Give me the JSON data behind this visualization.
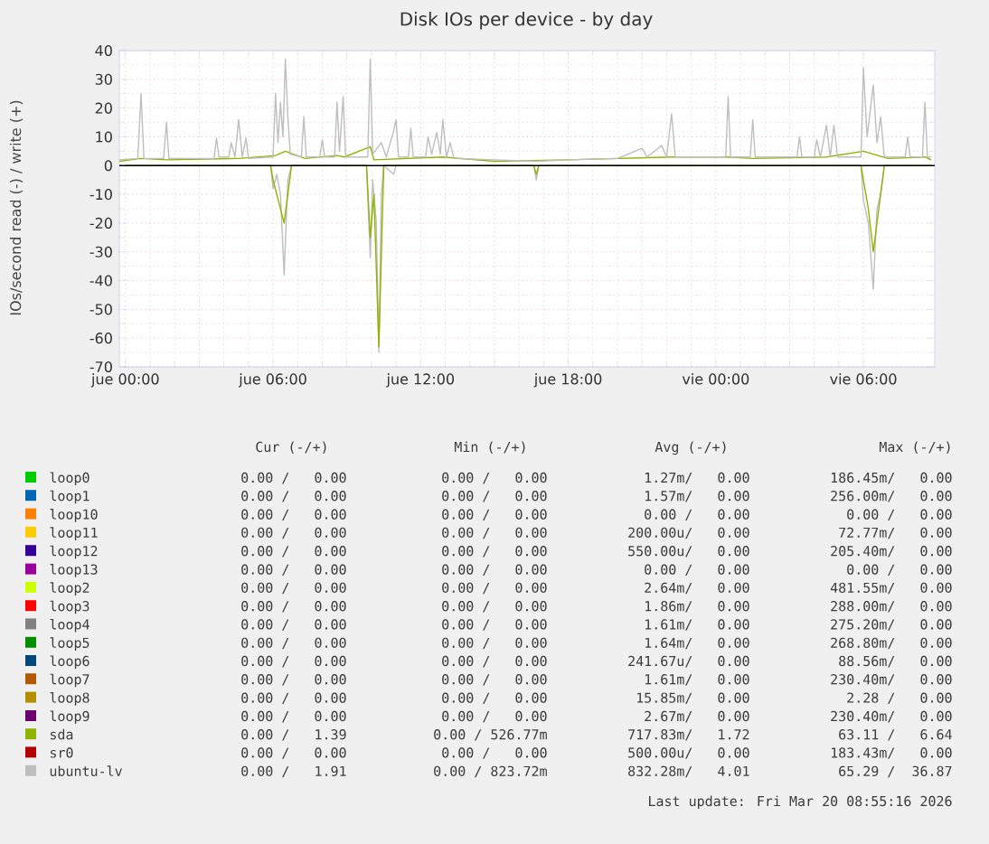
{
  "chart_data": {
    "type": "line",
    "title": "Disk IOs per device - by day",
    "ylabel": "IOs/second read (-) / write (+)",
    "xlim": [
      "2026-03-18T23:45",
      "2026-03-20T08:54"
    ],
    "ylim": [
      -70,
      40
    ],
    "xticks": [
      {
        "value": "2026-03-19T00:00",
        "label": "jue 00:00"
      },
      {
        "value": "2026-03-19T03:00",
        "label": null
      },
      {
        "value": "2026-03-19T06:00",
        "label": "jue 06:00"
      },
      {
        "value": "2026-03-19T09:00",
        "label": null
      },
      {
        "value": "2026-03-19T12:00",
        "label": "jue 12:00"
      },
      {
        "value": "2026-03-19T15:00",
        "label": null
      },
      {
        "value": "2026-03-19T18:00",
        "label": "jue 18:00"
      },
      {
        "value": "2026-03-19T21:00",
        "label": null
      },
      {
        "value": "2026-03-20T00:00",
        "label": "vie 00:00"
      },
      {
        "value": "2026-03-20T03:00",
        "label": null
      },
      {
        "value": "2026-03-20T06:00",
        "label": "vie 06:00"
      }
    ],
    "yticks": [
      -70,
      -60,
      -50,
      -40,
      -30,
      -20,
      -10,
      0,
      10,
      20,
      30,
      40
    ],
    "grid": true,
    "legend": "bottom",
    "ref_lines": [
      {
        "axis": "y",
        "value": 0,
        "color": "#000000"
      }
    ],
    "series": [
      {
        "name": "loop0",
        "color": "#00cc00"
      },
      {
        "name": "loop1",
        "color": "#0066b3"
      },
      {
        "name": "loop10",
        "color": "#ff8000"
      },
      {
        "name": "loop11",
        "color": "#ffcc00"
      },
      {
        "name": "loop12",
        "color": "#330099"
      },
      {
        "name": "loop13",
        "color": "#990099"
      },
      {
        "name": "loop2",
        "color": "#ccff00"
      },
      {
        "name": "loop3",
        "color": "#ff0000"
      },
      {
        "name": "loop4",
        "color": "#808080"
      },
      {
        "name": "loop5",
        "color": "#008f00"
      },
      {
        "name": "loop6",
        "color": "#00487d"
      },
      {
        "name": "loop7",
        "color": "#b35a00"
      },
      {
        "name": "loop8",
        "color": "#b38f00"
      },
      {
        "name": "loop9",
        "color": "#6b006b"
      },
      {
        "name": "sda",
        "color": "#8fb300",
        "x": [
          "2026-03-18T23:45",
          "2026-03-19T00:36",
          "2026-03-19T01:42",
          "2026-03-19T04:36",
          "2026-03-19T06:06",
          "2026-03-19T06:30",
          "2026-03-19T07:18",
          "2026-03-19T08:36",
          "2026-03-19T08:54",
          "2026-03-19T09:57",
          "2026-03-19T10:06",
          "2026-03-19T12:54",
          "2026-03-19T15:00",
          "2026-03-19T18:00",
          "2026-03-19T22:12",
          "2026-03-20T00:30",
          "2026-03-20T01:30",
          "2026-03-20T04:30",
          "2026-03-20T06:00",
          "2026-03-20T06:24",
          "2026-03-20T07:00",
          "2026-03-20T08:30",
          "2026-03-20T08:45"
        ],
        "values": [
          1.5,
          2.5,
          2,
          2.5,
          3.5,
          5,
          2.5,
          3.5,
          3,
          6.6,
          2,
          3,
          1.5,
          2,
          3,
          3,
          2.5,
          3,
          5,
          4,
          2.5,
          3,
          2
        ]
      },
      {
        "name": "sr0",
        "color": "#b30000"
      },
      {
        "name": "ubuntu-lv",
        "color": "#bebebe",
        "x": [
          "2026-03-18T23:45",
          "2026-03-19T00:30",
          "2026-03-19T00:38",
          "2026-03-19T00:45",
          "2026-03-19T01:33",
          "2026-03-19T01:40",
          "2026-03-19T01:46",
          "2026-03-19T03:36",
          "2026-03-19T03:42",
          "2026-03-19T03:48",
          "2026-03-19T04:12",
          "2026-03-19T04:18",
          "2026-03-19T04:27",
          "2026-03-19T04:36",
          "2026-03-19T04:45",
          "2026-03-19T04:54",
          "2026-03-19T05:00",
          "2026-03-19T06:00",
          "2026-03-19T06:06",
          "2026-03-19T06:12",
          "2026-03-19T06:18",
          "2026-03-19T06:24",
          "2026-03-19T06:30",
          "2026-03-19T06:36",
          "2026-03-19T06:42",
          "2026-03-19T07:09",
          "2026-03-19T07:15",
          "2026-03-19T07:21",
          "2026-03-19T07:54",
          "2026-03-19T08:00",
          "2026-03-19T08:06",
          "2026-03-19T08:30",
          "2026-03-19T08:36",
          "2026-03-19T08:42",
          "2026-03-19T08:51",
          "2026-03-19T08:57",
          "2026-03-19T09:51",
          "2026-03-19T09:57",
          "2026-03-19T10:03",
          "2026-03-19T10:24",
          "2026-03-19T10:36",
          "2026-03-19T10:54",
          "2026-03-19T11:00",
          "2026-03-19T11:06",
          "2026-03-19T11:30",
          "2026-03-19T11:36",
          "2026-03-19T11:42",
          "2026-03-19T12:12",
          "2026-03-19T12:18",
          "2026-03-19T12:27",
          "2026-03-19T12:39",
          "2026-03-19T12:48",
          "2026-03-19T12:54",
          "2026-03-19T13:03",
          "2026-03-19T13:12",
          "2026-03-19T13:21",
          "2026-03-19T15:00",
          "2026-03-19T16:42",
          "2026-03-19T18:00",
          "2026-03-19T20:00",
          "2026-03-19T21:00",
          "2026-03-19T21:12",
          "2026-03-19T21:48",
          "2026-03-19T22:00",
          "2026-03-19T22:12",
          "2026-03-19T22:21",
          "2026-03-20T00:24",
          "2026-03-20T00:30",
          "2026-03-20T00:36",
          "2026-03-20T01:24",
          "2026-03-20T01:30",
          "2026-03-20T01:36",
          "2026-03-20T03:18",
          "2026-03-20T03:24",
          "2026-03-20T03:30",
          "2026-03-20T04:00",
          "2026-03-20T04:06",
          "2026-03-20T04:15",
          "2026-03-20T04:30",
          "2026-03-20T04:39",
          "2026-03-20T04:48",
          "2026-03-20T04:57",
          "2026-03-20T05:54",
          "2026-03-20T06:00",
          "2026-03-20T06:09",
          "2026-03-20T06:24",
          "2026-03-20T06:33",
          "2026-03-20T06:42",
          "2026-03-20T06:51",
          "2026-03-20T07:42",
          "2026-03-20T07:48",
          "2026-03-20T07:54",
          "2026-03-20T08:24",
          "2026-03-20T08:30",
          "2026-03-20T08:36",
          "2026-03-20T08:45"
        ],
        "values": [
          2,
          2.5,
          25,
          2.5,
          2.5,
          15,
          2.5,
          2.5,
          9.6,
          3,
          3,
          8,
          3,
          16,
          3,
          9.6,
          2.5,
          3,
          25,
          8,
          22,
          10,
          37,
          17,
          4,
          3,
          17,
          3,
          3,
          9,
          3,
          3,
          22,
          5,
          24,
          3,
          3,
          37,
          4,
          8,
          3,
          12,
          16,
          3,
          3,
          13,
          3,
          3,
          10,
          4,
          11.5,
          4,
          16,
          3,
          8,
          2.5,
          2,
          1.5,
          2,
          2.5,
          6,
          3,
          7,
          3,
          18,
          3,
          3,
          24,
          3,
          3,
          16,
          3,
          3,
          10,
          3,
          3,
          9,
          3,
          14,
          3,
          14,
          3,
          3,
          34,
          10,
          28,
          8,
          17,
          3,
          3,
          10,
          3,
          3,
          22,
          3,
          3
        ]
      },
      {
        "color": "#bebebe",
        "x": [
          "2026-03-19T00:00",
          "2026-03-19T05:54",
          "2026-03-19T06:00",
          "2026-03-19T06:09",
          "2026-03-19T06:18",
          "2026-03-19T06:27",
          "2026-03-19T06:36",
          "2026-03-19T06:45",
          "2026-03-19T09:48",
          "2026-03-19T09:57",
          "2026-03-19T10:03",
          "2026-03-19T10:12",
          "2026-03-19T10:18",
          "2026-03-19T10:24",
          "2026-03-19T10:30",
          "2026-03-19T10:54",
          "2026-03-19T11:00",
          "2026-03-19T16:36",
          "2026-03-19T16:42",
          "2026-03-19T16:48",
          "2026-03-20T05:54",
          "2026-03-20T06:00",
          "2026-03-20T06:12",
          "2026-03-20T06:24",
          "2026-03-20T06:33",
          "2026-03-20T06:42",
          "2026-03-20T06:51",
          "2026-03-20T08:45"
        ],
        "values": [
          0,
          0,
          -8,
          -3,
          -10,
          -38,
          -5,
          0,
          0,
          -32,
          -5,
          -20,
          -65,
          -10,
          0,
          -3,
          0,
          0,
          -5,
          0,
          0,
          -12,
          -20,
          -43,
          -15,
          -10,
          0,
          0
        ]
      },
      {
        "color": "#8fb300",
        "x": [
          "2026-03-19T00:00",
          "2026-03-19T05:54",
          "2026-03-19T06:00",
          "2026-03-19T06:27",
          "2026-03-19T06:45",
          "2026-03-19T09:48",
          "2026-03-19T09:57",
          "2026-03-19T10:06",
          "2026-03-19T10:18",
          "2026-03-19T10:30",
          "2026-03-19T16:36",
          "2026-03-19T16:42",
          "2026-03-19T16:48",
          "2026-03-20T05:54",
          "2026-03-20T06:12",
          "2026-03-20T06:24",
          "2026-03-20T06:51",
          "2026-03-20T08:45"
        ],
        "values": [
          0,
          0,
          -5,
          -20,
          0,
          0,
          -25,
          -10,
          -63,
          0,
          0,
          -3,
          0,
          0,
          -15,
          -30,
          0,
          0
        ]
      }
    ],
    "annotations": [
      "Cur (-/+)",
      "Min (-/+)",
      "Avg (-/+)",
      "Max (-/+)",
      "0.00 /   0.00",
      "0.00 /   0.00",
      "1.27m/   0.00",
      "186.45m/   0.00",
      "0.00 /   0.00",
      "0.00 /   0.00",
      "1.57m/   0.00",
      "256.00m/   0.00",
      "0.00 /   0.00",
      "0.00 /   0.00",
      "0.00 /   0.00",
      "0.00 /   0.00",
      "0.00 /   0.00",
      "0.00 /   0.00",
      "200.00u/   0.00",
      "72.77m/   0.00",
      "0.00 /   0.00",
      "0.00 /   0.00",
      "550.00u/   0.00",
      "205.40m/   0.00",
      "0.00 /   0.00",
      "0.00 /   0.00",
      "0.00 /   0.00",
      "0.00 /   0.00",
      "0.00 /   0.00",
      "0.00 /   0.00",
      "2.64m/   0.00",
      "481.55m/   0.00",
      "0.00 /   0.00",
      "0.00 /   0.00",
      "1.86m/   0.00",
      "288.00m/   0.00",
      "0.00 /   0.00",
      "0.00 /   0.00",
      "1.61m/   0.00",
      "275.20m/   0.00",
      "0.00 /   0.00",
      "0.00 /   0.00",
      "1.64m/   0.00",
      "268.80m/   0.00",
      "0.00 /   0.00",
      "0.00 /   0.00",
      "241.67u/   0.00",
      "88.56m/   0.00",
      "0.00 /   0.00",
      "0.00 /   0.00",
      "1.61m/   0.00",
      "230.40m/   0.00",
      "0.00 /   0.00",
      "0.00 /   0.00",
      "15.85m/   0.00",
      "2.28 /   0.00",
      "0.00 /   0.00",
      "0.00 /   0.00",
      "2.67m/   0.00",
      "230.40m/   0.00",
      "0.00 /   1.39",
      "0.00 / 526.77m",
      "717.83m/   1.72",
      "63.11 /   6.64",
      "0.00 /   0.00",
      "0.00 /   0.00",
      "500.00u/   0.00",
      "183.43m/   0.00",
      "0.00 /   1.91",
      "0.00 / 823.72m",
      "832.28m/   4.01",
      "65.29 /  36.87",
      "Last update: Fri Mar 20 08:55:16 2026"
    ]
  }
}
